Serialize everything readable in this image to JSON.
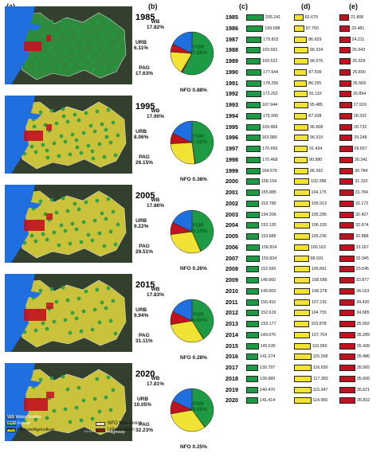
{
  "panel_letters": {
    "a": "(a)",
    "b": "(b)",
    "c": "(c)",
    "d": "(d)",
    "e": "(e)"
  },
  "maps": [
    {
      "year": "1985",
      "highway_label": ""
    },
    {
      "year": "1995",
      "highway_label": ""
    },
    {
      "year": "2005",
      "highway_label": ""
    },
    {
      "year": "2015",
      "highway_label": ""
    },
    {
      "year": "2020",
      "highway_label": "Highway"
    }
  ],
  "legend": {
    "wb": "WB Water bodies",
    "for": "FOR Forest",
    "pag": "PAG Pasture/Agriculture",
    "nfo": "NFO Non-forest",
    "urb": "Urbanization"
  },
  "colors": {
    "WB": "#1f6fe0",
    "FOR": "#1e9a45",
    "PAG": "#f2e233",
    "NFO": "#8a1b14",
    "URB": "#c1121f"
  },
  "chart_data": [
    {
      "type": "pie",
      "panel": "(b)",
      "pies": [
        {
          "year": "1985",
          "slices": [
            {
              "name": "FOR",
              "value": 57.55,
              "label": "FOR\n57.55%"
            },
            {
              "name": "NFO",
              "value": 0.88,
              "label": "NFO 0.88%"
            },
            {
              "name": "PAG",
              "value": 17.63,
              "label": "PAG\n17.63%"
            },
            {
              "name": "URB",
              "value": 6.11,
              "label": "URB\n6.11%"
            },
            {
              "name": "WB",
              "value": 17.82,
              "label": "WB\n17.82%"
            }
          ]
        },
        {
          "year": "1995",
          "slices": [
            {
              "name": "FOR",
              "value": 47.52,
              "label": "FOR\n47.52%"
            },
            {
              "name": "NFO",
              "value": 0.38,
              "label": "NFO 0.38%"
            },
            {
              "name": "PAG",
              "value": 26.15,
              "label": "PAG\n26.15%"
            },
            {
              "name": "URB",
              "value": 8.06,
              "label": "URB\n8.06%"
            },
            {
              "name": "WB",
              "value": 17.9,
              "label": "WB\n17.90%"
            }
          ]
        },
        {
          "year": "2005",
          "slices": [
            {
              "name": "FOR",
              "value": 43.15,
              "label": "FOR\n43.15%"
            },
            {
              "name": "NFO",
              "value": 0.26,
              "label": "NFO 0.26%"
            },
            {
              "name": "PAG",
              "value": 29.51,
              "label": "PAG\n29.51%"
            },
            {
              "name": "URB",
              "value": 9.22,
              "label": "URB\n9.22%"
            },
            {
              "name": "WB",
              "value": 17.86,
              "label": "WB\n17.86%"
            }
          ]
        },
        {
          "year": "2015",
          "slices": [
            {
              "name": "FOR",
              "value": 40.84,
              "label": "FOR\n40.84%"
            },
            {
              "name": "NFO",
              "value": 0.28,
              "label": "NFO 0.28%"
            },
            {
              "name": "PAG",
              "value": 31.11,
              "label": "PAG\n31.11%"
            },
            {
              "name": "URB",
              "value": 9.94,
              "label": "URB\n9.94%"
            },
            {
              "name": "WB",
              "value": 17.83,
              "label": "WB\n17.83%"
            }
          ]
        },
        {
          "year": "2020",
          "slices": [
            {
              "name": "FOR",
              "value": 39.65,
              "label": "FOR\n39.65%"
            },
            {
              "name": "NFO",
              "value": 0.25,
              "label": "NFO 0.25%"
            },
            {
              "name": "PAG",
              "value": 32.23,
              "label": "PAG\n32.23%"
            },
            {
              "name": "URB",
              "value": 10.05,
              "label": "URB\n10.05%"
            },
            {
              "name": "WB",
              "value": 17.81,
              "label": "WB\n17.81%"
            }
          ]
        }
      ]
    },
    {
      "type": "bar",
      "orientation": "horizontal",
      "panel": "(c)",
      "categories": [
        "1985",
        "1986",
        "1987",
        "1988",
        "1989",
        "1990",
        "1991",
        "1992",
        "1993",
        "1994",
        "1995",
        "1996",
        "1997",
        "1998",
        "1999",
        "2000",
        "2001",
        "2002",
        "2003",
        "2004",
        "2005",
        "2006",
        "2007",
        "2008",
        "2009",
        "2010",
        "2011",
        "2012",
        "2013",
        "2014",
        "2015",
        "2016",
        "2017",
        "2018",
        "2019",
        "2020"
      ],
      "values": [
        "205.241",
        "199.098",
        "179.815",
        "169.592",
        "169.522",
        "177.644",
        "178.250",
        "173.252",
        "167.944",
        "175.990",
        "169.468",
        "163.980",
        "170.656",
        "170.468",
        "164.576",
        "158.154",
        "155.885",
        "153.780",
        "154.206",
        "153.130",
        "153.885",
        "158.824",
        "159.824",
        "152.560",
        "149.660",
        "149.603",
        "150.410",
        "152.619",
        "153.177",
        "149.076",
        "145.630",
        "141.274",
        "139.797",
        "139.989",
        "140.470",
        "141.414"
      ],
      "series_color": "#1e9a45"
    },
    {
      "type": "bar",
      "orientation": "horizontal",
      "panel": "(d)",
      "categories": [
        "1985",
        "1986",
        "1987",
        "1988",
        "1989",
        "1990",
        "1991",
        "1992",
        "1993",
        "1994",
        "1995",
        "1996",
        "1997",
        "1998",
        "1999",
        "2000",
        "2001",
        "2002",
        "2003",
        "2004",
        "2005",
        "2006",
        "2007",
        "2008",
        "2009",
        "2010",
        "2011",
        "2012",
        "2013",
        "2014",
        "2015",
        "2016",
        "2017",
        "2018",
        "2019",
        "2020"
      ],
      "values": [
        "62.679",
        "67.750",
        "86.629",
        "96.324",
        "96.076",
        "87.509",
        "86.255",
        "91.115",
        "95.485",
        "87.028",
        "96.608",
        "96.319",
        "91.434",
        "90.980",
        "96.362",
        "102.288",
        "104.175",
        "105.913",
        "105.295",
        "106.155",
        "105.236",
        "100.163",
        "98.931",
        "105.891",
        "108.589",
        "108.278",
        "107.191",
        "104.755",
        "103.878",
        "107.704",
        "110.960",
        "115.268",
        "116.650",
        "117.383",
        "115.947",
        "114.950"
      ],
      "series_color": "#f2e233"
    },
    {
      "type": "bar",
      "orientation": "horizontal",
      "panel": "(e)",
      "categories": [
        "1985",
        "1986",
        "1987",
        "1988",
        "1989",
        "1990",
        "1991",
        "1992",
        "1993",
        "1994",
        "1995",
        "1996",
        "1997",
        "1998",
        "1999",
        "2000",
        "2001",
        "2002",
        "2003",
        "2004",
        "2005",
        "2006",
        "2007",
        "2008",
        "2009",
        "2010",
        "2011",
        "2012",
        "2013",
        "2014",
        "2015",
        "2016",
        "2017",
        "2018",
        "2019",
        "2020"
      ],
      "values": [
        "21.806",
        "23.481",
        "24.211",
        "25.043",
        "25.529",
        "25.890",
        "26.569",
        "26.894",
        "27.919",
        "28.332",
        "28.732",
        "29.248",
        "29.657",
        "30.341",
        "30.784",
        "31.332",
        "31.784",
        "32.172",
        "32.427",
        "32.674",
        "32.888",
        "33.167",
        "33.345",
        "33.645",
        "33.877",
        "34.163",
        "34.430",
        "34.685",
        "35.092",
        "35.289",
        "35.439",
        "35.486",
        "35.565",
        "35.606",
        "35.621",
        "35.832"
      ],
      "series_color": "#c1121f"
    }
  ]
}
